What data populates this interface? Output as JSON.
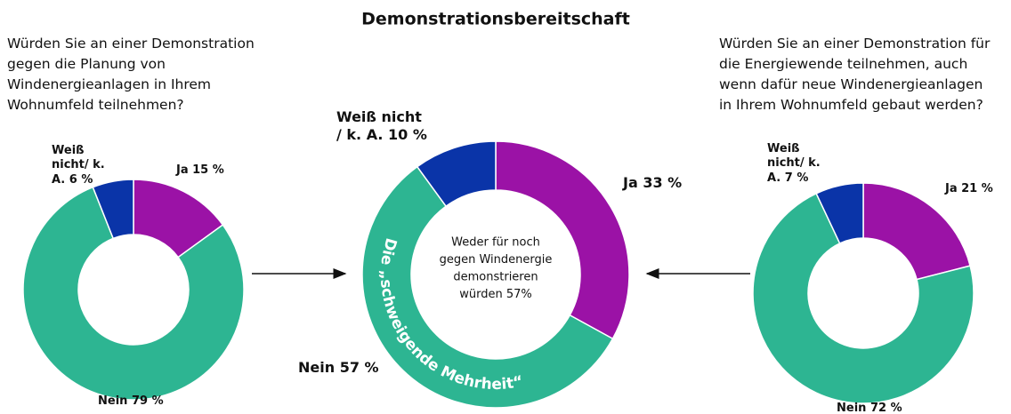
{
  "title": "Demonstrationsbereitschaft",
  "chart_data": [
    {
      "type": "donut",
      "question_lines": [
        "Würden Sie an einer Demonstration",
        "gegen die Planung von",
        "Windenergieanlagen in Ihrem",
        "Wohnumfeld teilnehmen?"
      ],
      "categories": [
        "Ja",
        "Nein",
        "Weiß nicht/ k. A."
      ],
      "values": [
        15,
        79,
        6
      ],
      "value_labels": [
        "15 %",
        "79 %",
        "6 %"
      ],
      "colors": [
        "#9b12a6",
        "#2db592",
        "#0a34a8"
      ]
    },
    {
      "type": "donut",
      "categories": [
        "Ja",
        "Nein",
        "Weiß nicht / k. A."
      ],
      "values": [
        33,
        57,
        10
      ],
      "value_labels": [
        "33 %",
        "57 %",
        "10 %"
      ],
      "colors": [
        "#9b12a6",
        "#2db592",
        "#0a34a8"
      ],
      "center_text_lines": [
        "Weder für noch",
        "gegen Windenergie",
        "demonstrieren",
        "würden 57%"
      ],
      "annotation": "Die „schweigende Mehrheit“"
    },
    {
      "type": "donut",
      "question_lines": [
        "Würden Sie an einer Demonstration für",
        "die Energiewende teilnehmen, auch",
        "wenn dafür neue Windenergieanlagen",
        "in Ihrem Wohnumfeld gebaut werden?"
      ],
      "categories": [
        "Ja",
        "Nein",
        "Weiß nicht/ k. A."
      ],
      "values": [
        21,
        72,
        7
      ],
      "value_labels": [
        "21 %",
        "72 %",
        "7 %"
      ],
      "colors": [
        "#9b12a6",
        "#2db592",
        "#0a34a8"
      ]
    }
  ]
}
